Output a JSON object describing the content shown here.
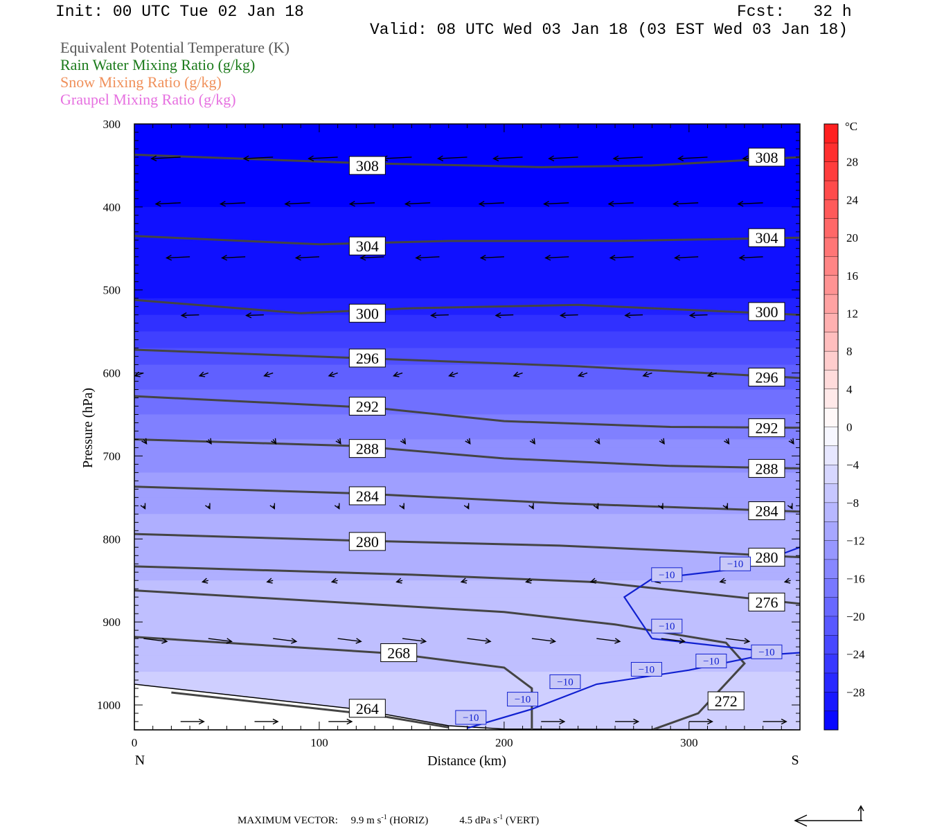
{
  "header": {
    "init": "Init: 00 UTC Tue 02 Jan 18",
    "fcst": "Fcst:   32 h",
    "valid": "Valid: 08 UTC Wed 03 Jan 18 (03 EST Wed 03 Jan 18)"
  },
  "fields": [
    {
      "label": "Equivalent Potential Temperature (K)",
      "color": "#555555"
    },
    {
      "label": "Rain Water Mixing Ratio (g/kg)",
      "color": "#1a7a1a"
    },
    {
      "label": "Snow Mixing Ratio (g/kg)",
      "color": "#f0905a"
    },
    {
      "label": "Graupel Mixing Ratio (g/kg)",
      "color": "#e670e0"
    }
  ],
  "footer": {
    "title": "MAXIMUM VECTOR:",
    "horiz_value": "9.9 m s",
    "horiz_exp": "-1",
    "horiz_label": "(HORIZ)",
    "vert_value": "4.5 dPa s",
    "vert_exp": "-1",
    "vert_label": "(VERT)"
  },
  "chart_data": {
    "type": "cross-section",
    "xlabel": "Distance (km)",
    "ylabel": "Pressure (hPa)",
    "x_left_label": "N",
    "x_right_label": "S",
    "xlim": [
      0,
      360
    ],
    "ylim": [
      1030,
      300
    ],
    "y_scale": "linear-pressure",
    "x_ticks": [
      0,
      100,
      200,
      300
    ],
    "y_ticks": [
      300,
      400,
      500,
      600,
      700,
      800,
      900,
      1000
    ],
    "colorbar": {
      "unit": "°C",
      "labels": [
        28,
        24,
        20,
        16,
        12,
        8,
        4,
        0,
        -4,
        -8,
        -12,
        -16,
        -20,
        -24,
        -28
      ],
      "range": [
        -32,
        32
      ],
      "step": 2
    },
    "temperature_shading_c": [
      {
        "p": 300,
        "t": -32
      },
      {
        "p": 500,
        "t": -30
      },
      {
        "p": 600,
        "t": -20
      },
      {
        "p": 700,
        "t": -14
      },
      {
        "p": 800,
        "t": -10
      },
      {
        "p": 900,
        "t": -8
      },
      {
        "p": 1030,
        "t": -6
      }
    ],
    "theta_e_contours": [
      {
        "level": 308,
        "points": [
          [
            0,
            337
          ],
          [
            120,
            347
          ],
          [
            220,
            352
          ],
          [
            280,
            350
          ],
          [
            360,
            340
          ]
        ]
      },
      {
        "level": 304,
        "points": [
          [
            0,
            435
          ],
          [
            100,
            445
          ],
          [
            170,
            441
          ],
          [
            260,
            441
          ],
          [
            360,
            437
          ]
        ]
      },
      {
        "level": 300,
        "points": [
          [
            0,
            512
          ],
          [
            90,
            528
          ],
          [
            150,
            522
          ],
          [
            240,
            518
          ],
          [
            360,
            530
          ]
        ]
      },
      {
        "level": 296,
        "points": [
          [
            0,
            572
          ],
          [
            120,
            582
          ],
          [
            240,
            592
          ],
          [
            360,
            606
          ]
        ]
      },
      {
        "level": 292,
        "points": [
          [
            0,
            628
          ],
          [
            130,
            642
          ],
          [
            200,
            658
          ],
          [
            290,
            665
          ],
          [
            360,
            666
          ]
        ]
      },
      {
        "level": 288,
        "points": [
          [
            0,
            680
          ],
          [
            120,
            688
          ],
          [
            200,
            703
          ],
          [
            290,
            712
          ],
          [
            360,
            715
          ]
        ]
      },
      {
        "level": 284,
        "points": [
          [
            0,
            737
          ],
          [
            120,
            745
          ],
          [
            230,
            757
          ],
          [
            360,
            767
          ]
        ]
      },
      {
        "level": 280,
        "points": [
          [
            0,
            794
          ],
          [
            120,
            802
          ],
          [
            230,
            808
          ],
          [
            300,
            815
          ],
          [
            360,
            822
          ]
        ]
      },
      {
        "level": 276,
        "points": [
          [
            0,
            833
          ],
          [
            150,
            843
          ],
          [
            250,
            852
          ],
          [
            360,
            878
          ]
        ]
      },
      {
        "level": 272,
        "points": [
          [
            0,
            862
          ],
          [
            200,
            888
          ],
          [
            260,
            903
          ],
          [
            320,
            925
          ],
          [
            330,
            950
          ],
          [
            305,
            1010
          ],
          [
            280,
            1030
          ]
        ]
      },
      {
        "level": 268,
        "points": [
          [
            0,
            918
          ],
          [
            140,
            938
          ],
          [
            200,
            955
          ],
          [
            215,
            980
          ],
          [
            215,
            1030
          ]
        ]
      },
      {
        "level": 264,
        "points": [
          [
            20,
            985
          ],
          [
            130,
            1012
          ],
          [
            170,
            1027
          ]
        ]
      }
    ],
    "theta_e_labels": [
      {
        "text": "308",
        "x": 126,
        "p": 350
      },
      {
        "text": "308",
        "x": 342,
        "p": 340
      },
      {
        "text": "304",
        "x": 126,
        "p": 447
      },
      {
        "text": "304",
        "x": 342,
        "p": 437
      },
      {
        "text": "300",
        "x": 126,
        "p": 528
      },
      {
        "text": "300",
        "x": 342,
        "p": 526
      },
      {
        "text": "296",
        "x": 126,
        "p": 582
      },
      {
        "text": "296",
        "x": 342,
        "p": 605
      },
      {
        "text": "292",
        "x": 126,
        "p": 640
      },
      {
        "text": "292",
        "x": 342,
        "p": 666
      },
      {
        "text": "288",
        "x": 126,
        "p": 691
      },
      {
        "text": "288",
        "x": 342,
        "p": 715
      },
      {
        "text": "284",
        "x": 126,
        "p": 748
      },
      {
        "text": "284",
        "x": 342,
        "p": 766
      },
      {
        "text": "280",
        "x": 126,
        "p": 803
      },
      {
        "text": "280",
        "x": 342,
        "p": 822
      },
      {
        "text": "276",
        "x": 342,
        "p": 876
      },
      {
        "text": "272",
        "x": 320,
        "p": 995
      },
      {
        "text": "268",
        "x": 143,
        "p": 937
      },
      {
        "text": "264",
        "x": 126,
        "p": 1004
      }
    ],
    "isotherm_minus10": [
      [
        180,
        1028
      ],
      [
        215,
        1005
      ],
      [
        250,
        975
      ],
      [
        300,
        958
      ],
      [
        340,
        940
      ],
      [
        360,
        937
      ]
    ],
    "isotherm_minus10_upper": [
      [
        280,
        920
      ],
      [
        265,
        870
      ],
      [
        280,
        848
      ],
      [
        330,
        835
      ],
      [
        360,
        810
      ]
    ],
    "isotherm_minus10_upper2": [
      [
        280,
        920
      ],
      [
        340,
        935
      ]
    ],
    "isotherm_labels": [
      {
        "text": "−10",
        "x": 182,
        "p": 1015
      },
      {
        "text": "−10",
        "x": 210,
        "p": 993
      },
      {
        "text": "−10",
        "x": 233,
        "p": 972
      },
      {
        "text": "−10",
        "x": 277,
        "p": 957
      },
      {
        "text": "−10",
        "x": 312,
        "p": 947
      },
      {
        "text": "−10",
        "x": 342,
        "p": 936
      },
      {
        "text": "−10",
        "x": 288,
        "p": 905
      },
      {
        "text": "−10",
        "x": 288,
        "p": 843
      },
      {
        "text": "−10",
        "x": 325,
        "p": 830
      }
    ],
    "wind_vectors": [
      {
        "p": 340,
        "u": -1,
        "v": 0.05,
        "rows_x": [
          25,
          75,
          110,
          150,
          180,
          210,
          240,
          275,
          310,
          345
        ]
      },
      {
        "p": 395,
        "u": -0.85,
        "v": 0.04,
        "rows_x": [
          25,
          60,
          95,
          130,
          160,
          200,
          235,
          270,
          305,
          340
        ]
      },
      {
        "p": 460,
        "u": -0.8,
        "v": 0.04,
        "rows_x": [
          30,
          60,
          100,
          135,
          165,
          200,
          235,
          270,
          305,
          340
        ]
      },
      {
        "p": 530,
        "u": -0.6,
        "v": 0.02,
        "rows_x": [
          35,
          70,
          135,
          170,
          205,
          240,
          275,
          310,
          345
        ]
      },
      {
        "p": 600,
        "u": -0.3,
        "v": 0.1,
        "rows_x": [
          5,
          40,
          75,
          110,
          145,
          175,
          210,
          245,
          280,
          315,
          350
        ]
      },
      {
        "p": 680,
        "u": 0.1,
        "v": 0.15,
        "rows_x": [
          5,
          40,
          75,
          110,
          145,
          180,
          215,
          250,
          285,
          320,
          355
        ]
      },
      {
        "p": 760,
        "u": 0.05,
        "v": 0.1,
        "rows_x": [
          5,
          40,
          75,
          110,
          145,
          180,
          215,
          250,
          285,
          320,
          355
        ]
      },
      {
        "p": 850,
        "u": -0.2,
        "v": 0.05,
        "rows_x": [
          40,
          75,
          110,
          145,
          180,
          215,
          250,
          285,
          320,
          355
        ]
      },
      {
        "p": 920,
        "u": 0.8,
        "v": 0.1,
        "rows_x": [
          5,
          40,
          75,
          110,
          145,
          180,
          215,
          250,
          285,
          320
        ]
      },
      {
        "p": 1020,
        "u": 0.8,
        "v": 0.0,
        "rows_x": [
          25,
          65,
          105,
          220,
          260,
          300,
          340
        ]
      }
    ]
  }
}
